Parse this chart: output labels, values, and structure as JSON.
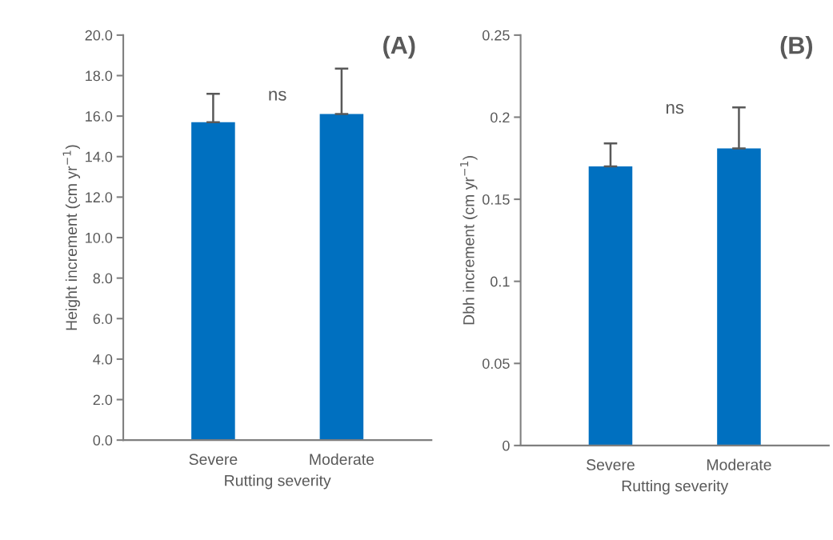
{
  "chart_data": [
    {
      "type": "bar",
      "categories": [
        "Severe",
        "Moderate"
      ],
      "values": [
        15.7,
        16.1
      ],
      "color": "#0070c0",
      "errors": [
        [
          15.7,
          17.1
        ],
        [
          16.1,
          18.35
        ]
      ],
      "xlabel": "Rutting severity",
      "ylabel": "Height increment (cm yr$^{−1}$)",
      "ylim": [
        0,
        20
      ],
      "yticks": [
        {
          "value": 0,
          "label": "0.0"
        },
        {
          "value": 2,
          "label": "2.0"
        },
        {
          "value": 4,
          "label": "4.0"
        },
        {
          "value": 6,
          "label": "6.0"
        },
        {
          "value": 8,
          "label": "8.0"
        },
        {
          "value": 10,
          "label": "10.0"
        },
        {
          "value": 12,
          "label": "12.0"
        },
        {
          "value": 14,
          "label": "14.0"
        },
        {
          "value": 16,
          "label": "16.0"
        },
        {
          "value": 18,
          "label": "18.0"
        },
        {
          "value": 20,
          "label": "20.0"
        }
      ],
      "annotations": [
        "(A)",
        "ns"
      ],
      "grid": false,
      "legend": false
    },
    {
      "type": "bar",
      "categories": [
        "Severe",
        "Moderate"
      ],
      "values": [
        0.17,
        0.181
      ],
      "color": "#0070c0",
      "errors": [
        [
          0.17,
          0.184
        ],
        [
          0.181,
          0.206
        ]
      ],
      "xlabel": "Rutting severity",
      "ylabel": "Dbh increment (cm yr$^{−1}$)",
      "ylim": [
        0,
        0.25
      ],
      "yticks": [
        0,
        0.05,
        0.1,
        0.15,
        0.2,
        0.25
      ],
      "annotations": [
        "(B)",
        "ns"
      ],
      "grid": false,
      "legend": false
    }
  ]
}
